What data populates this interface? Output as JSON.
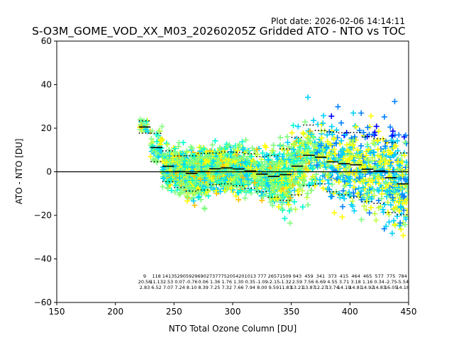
{
  "plot_date_label": "Plot date:",
  "plot_date": "2026-02-06 14:14:11",
  "chart_data": {
    "type": "scatter",
    "title": "S-O3M_GOME_VOD_XX_M03_20260205Z Gridded ATO - NTO vs TOC",
    "xlabel": "NTO Total Ozone Column [DU]",
    "ylabel": "ATO - NTO [DU]",
    "xlim": [
      150,
      450
    ],
    "ylim": [
      -60,
      60
    ],
    "xticks": [
      150,
      200,
      250,
      300,
      350,
      400,
      450
    ],
    "yticks": [
      -60,
      -40,
      -20,
      0,
      20,
      40,
      60
    ],
    "zero_line": 0,
    "point_colors": [
      "#0000ff",
      "#0080ff",
      "#00d0ff",
      "#00ffd0",
      "#80ff80",
      "#c0ff40",
      "#ffff00",
      "#ffc000"
    ],
    "bin_width": 10,
    "bins_x": [
      225,
      235,
      245,
      255,
      265,
      275,
      285,
      295,
      305,
      315,
      325,
      335,
      345,
      355,
      365,
      375,
      385,
      395,
      405,
      415,
      425,
      435,
      445
    ],
    "bin_mean": [
      20.56,
      11.13,
      2.53,
      0.07,
      -0.76,
      0.06,
      1.36,
      1.76,
      1.3,
      0.35,
      -1.09,
      -2.15,
      -1.32,
      2.59,
      7.56,
      6.69,
      4.55,
      3.71,
      3.18,
      1.16,
      0.34,
      -2.75,
      -5.54
    ],
    "bin_std": [
      2.83,
      6.52,
      7.07,
      7.24,
      8.1,
      8.39,
      7.25,
      7.32,
      7.66,
      7.94,
      8.0,
      9.59,
      11.83,
      13.21,
      13.87,
      12.27,
      13.74,
      14.19,
      14.81,
      14.92,
      14.83,
      16.05,
      14.18
    ],
    "table_counts": [
      "9",
      "118",
      "1413",
      "5290",
      "5929",
      "6902",
      "7377",
      "7520",
      "5420",
      "1013",
      "777",
      "2657",
      "1509",
      "943",
      "459",
      "341",
      "373",
      "415",
      "464",
      "465",
      "577",
      "775",
      "784"
    ],
    "table_mean": [
      "20.56",
      "11.13",
      "2.53",
      "0.07",
      "-0.76",
      "0.06",
      "1.36",
      "1.76",
      "1.30",
      "0.35",
      "-1.09",
      "-2.15",
      "-1.32",
      "2.59",
      "7.56",
      "6.69",
      "4.55",
      "3.71",
      "3.18",
      "1.16",
      "0.34",
      "-2.75",
      "-5.54"
    ],
    "table_std": [
      "2.83",
      "6.52",
      "7.07",
      "7.24",
      "8.10",
      "8.39",
      "7.25",
      "7.32",
      "7.66",
      "7.94",
      "8.00",
      "9.59",
      "11.83",
      "13.21",
      "13.87",
      "12.27",
      "13.74",
      "14.19",
      "14.81",
      "14.92",
      "14.83",
      "16.05",
      "14.18"
    ]
  }
}
